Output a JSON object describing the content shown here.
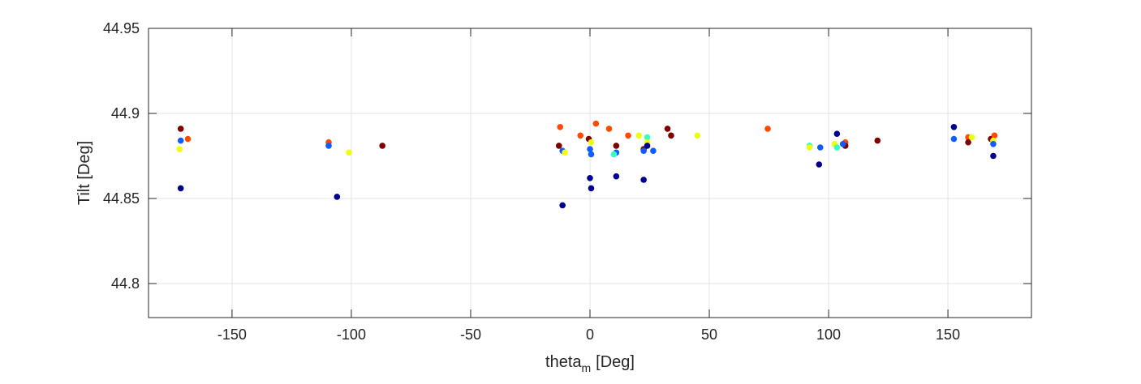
{
  "chart_data": {
    "type": "scatter",
    "xlabel": "theta",
    "xlabel_sub": "m",
    "xlabel_unit": "[Deg]",
    "ylabel": "Tilt [Deg]",
    "xlim": [
      -185,
      185
    ],
    "ylim": [
      44.78,
      44.95
    ],
    "xticks": [
      -150,
      -100,
      -50,
      0,
      50,
      100,
      150
    ],
    "yticks": [
      44.8,
      44.85,
      44.9,
      44.95
    ],
    "xtick_labels": [
      "-150",
      "-100",
      "-50",
      "0",
      "50",
      "100",
      "150"
    ],
    "ytick_labels": [
      "44.8",
      "44.85",
      "44.9",
      "44.95"
    ],
    "grid": true,
    "points": [
      {
        "x": -171.5,
        "y": 44.891,
        "color": "#7f0000"
      },
      {
        "x": -171.5,
        "y": 44.884,
        "color": "#0f5cff"
      },
      {
        "x": -168.5,
        "y": 44.885,
        "color": "#ff4a00"
      },
      {
        "x": -172.0,
        "y": 44.879,
        "color": "#ecff12"
      },
      {
        "x": -171.5,
        "y": 44.856,
        "color": "#00008f"
      },
      {
        "x": -109.5,
        "y": 44.883,
        "color": "#ff4a00"
      },
      {
        "x": -109.5,
        "y": 44.881,
        "color": "#0f5cff"
      },
      {
        "x": -101.0,
        "y": 44.877,
        "color": "#ecff12"
      },
      {
        "x": -106.0,
        "y": 44.851,
        "color": "#00008f"
      },
      {
        "x": -87.0,
        "y": 44.881,
        "color": "#7f0000"
      },
      {
        "x": -12.5,
        "y": 44.892,
        "color": "#ff4a00"
      },
      {
        "x": -13.0,
        "y": 44.881,
        "color": "#7f0000"
      },
      {
        "x": -11.5,
        "y": 44.878,
        "color": "#0f5cff"
      },
      {
        "x": -10.5,
        "y": 44.877,
        "color": "#ecff12"
      },
      {
        "x": -11.5,
        "y": 44.846,
        "color": "#00008f"
      },
      {
        "x": -4.0,
        "y": 44.887,
        "color": "#ff4a00"
      },
      {
        "x": -0.5,
        "y": 44.885,
        "color": "#7f0000"
      },
      {
        "x": 0.5,
        "y": 44.883,
        "color": "#ecff12"
      },
      {
        "x": 0.0,
        "y": 44.879,
        "color": "#0f5cff"
      },
      {
        "x": 0.5,
        "y": 44.876,
        "color": "#0f5cff"
      },
      {
        "x": 0.0,
        "y": 44.862,
        "color": "#00008f"
      },
      {
        "x": 0.5,
        "y": 44.856,
        "color": "#00008f"
      },
      {
        "x": 2.5,
        "y": 44.894,
        "color": "#ff4a00"
      },
      {
        "x": 8.0,
        "y": 44.891,
        "color": "#ff4a00"
      },
      {
        "x": 11.0,
        "y": 44.881,
        "color": "#7f0000"
      },
      {
        "x": 11.0,
        "y": 44.877,
        "color": "#0f5cff"
      },
      {
        "x": 10.0,
        "y": 44.876,
        "color": "#36ffc1"
      },
      {
        "x": 11.0,
        "y": 44.863,
        "color": "#00008f"
      },
      {
        "x": 16.0,
        "y": 44.887,
        "color": "#ff4a00"
      },
      {
        "x": 20.5,
        "y": 44.887,
        "color": "#ecff12"
      },
      {
        "x": 22.5,
        "y": 44.879,
        "color": "#7f0000"
      },
      {
        "x": 22.5,
        "y": 44.878,
        "color": "#0f5cff"
      },
      {
        "x": 24.0,
        "y": 44.886,
        "color": "#36ffc1"
      },
      {
        "x": 24.0,
        "y": 44.883,
        "color": "#ecff12"
      },
      {
        "x": 24.0,
        "y": 44.881,
        "color": "#00008f"
      },
      {
        "x": 26.5,
        "y": 44.878,
        "color": "#0f5cff"
      },
      {
        "x": 22.5,
        "y": 44.861,
        "color": "#00008f"
      },
      {
        "x": 32.5,
        "y": 44.891,
        "color": "#7f0000"
      },
      {
        "x": 34.0,
        "y": 44.887,
        "color": "#7f0000"
      },
      {
        "x": 45.0,
        "y": 44.887,
        "color": "#ecff12"
      },
      {
        "x": 74.5,
        "y": 44.891,
        "color": "#ff4a00"
      },
      {
        "x": 92.0,
        "y": 44.881,
        "color": "#36ffc1"
      },
      {
        "x": 92.0,
        "y": 44.88,
        "color": "#ecff12"
      },
      {
        "x": 96.5,
        "y": 44.88,
        "color": "#0f5cff"
      },
      {
        "x": 96.0,
        "y": 44.87,
        "color": "#00008f"
      },
      {
        "x": 102.5,
        "y": 44.882,
        "color": "#ecff12"
      },
      {
        "x": 103.5,
        "y": 44.88,
        "color": "#36ffc1"
      },
      {
        "x": 103.5,
        "y": 44.888,
        "color": "#00008f"
      },
      {
        "x": 107.0,
        "y": 44.883,
        "color": "#ff4a00"
      },
      {
        "x": 107.0,
        "y": 44.881,
        "color": "#7f0000"
      },
      {
        "x": 106.0,
        "y": 44.882,
        "color": "#0f5cff"
      },
      {
        "x": 120.5,
        "y": 44.884,
        "color": "#7f0000"
      },
      {
        "x": 152.5,
        "y": 44.892,
        "color": "#00008f"
      },
      {
        "x": 152.5,
        "y": 44.885,
        "color": "#0f5cff"
      },
      {
        "x": 158.5,
        "y": 44.886,
        "color": "#ff4a00"
      },
      {
        "x": 160.0,
        "y": 44.886,
        "color": "#ecff12"
      },
      {
        "x": 158.5,
        "y": 44.883,
        "color": "#7f0000"
      },
      {
        "x": 168.0,
        "y": 44.885,
        "color": "#7f0000"
      },
      {
        "x": 169.5,
        "y": 44.887,
        "color": "#ff4a00"
      },
      {
        "x": 169.0,
        "y": 44.884,
        "color": "#ecff12"
      },
      {
        "x": 169.0,
        "y": 44.882,
        "color": "#0f5cff"
      },
      {
        "x": 169.0,
        "y": 44.875,
        "color": "#00008f"
      }
    ]
  }
}
